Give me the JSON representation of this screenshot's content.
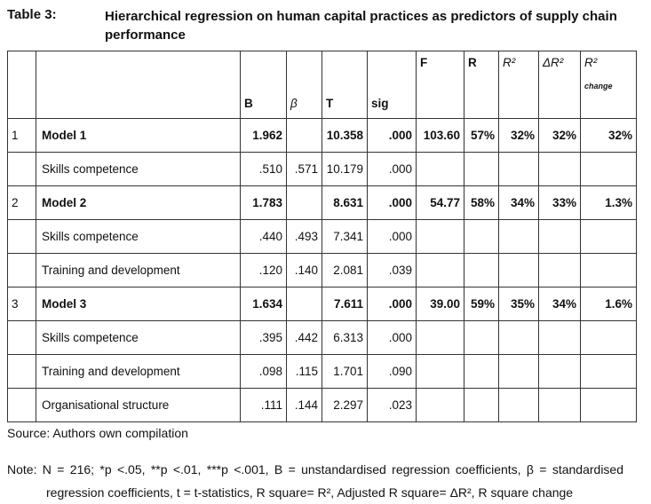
{
  "caption": "Table 3:",
  "title": "Hierarchical regression on human capital practices as predictors of supply chain performance",
  "table": {
    "header": [
      null,
      null,
      "B",
      "β",
      "T",
      "sig",
      "F",
      "R",
      "R²",
      "ΔR²",
      "R²"
    ],
    "change_label": "change",
    "rows": [
      [
        "1",
        "Model 1",
        "1.962",
        null,
        "10.358",
        ".000",
        "103.60",
        "57%",
        "32%",
        "32%",
        "32%"
      ],
      [
        null,
        "Skills competence",
        ".510",
        ".571",
        "10.179",
        ".000",
        null,
        null,
        null,
        null,
        null
      ],
      [
        "2",
        "Model 2",
        "1.783",
        null,
        "8.631",
        ".000",
        "54.77",
        "58%",
        "34%",
        "33%",
        "1.3%"
      ],
      [
        null,
        "Skills competence",
        ".440",
        ".493",
        "7.341",
        ".000",
        null,
        null,
        null,
        null,
        null
      ],
      [
        null,
        "Training and development",
        ".120",
        ".140",
        "2.081",
        ".039",
        null,
        null,
        null,
        null,
        null
      ],
      [
        "3",
        "Model 3",
        "1.634",
        null,
        "7.611",
        ".000",
        "39.00",
        "59%",
        "35%",
        "34%",
        "1.6%"
      ],
      [
        null,
        "Skills competence",
        ".395",
        ".442",
        "6.313",
        ".000",
        null,
        null,
        null,
        null,
        null
      ],
      [
        null,
        "Training and development",
        ".098",
        ".115",
        "1.701",
        ".090",
        null,
        null,
        null,
        null,
        null
      ],
      [
        null,
        "Organisational structure",
        ".111",
        ".144",
        "2.297",
        ".023",
        null,
        null,
        null,
        null,
        null
      ]
    ]
  },
  "source": "Source: Authors own compilation",
  "note": "Note: N = 216; *p <.05, **p <.01, ***p <.001, B = unstandardised regression coefficients, β = standardised regression coefficients, t = t-statistics, R square= R², Adjusted R square= ΔR², R square change"
}
